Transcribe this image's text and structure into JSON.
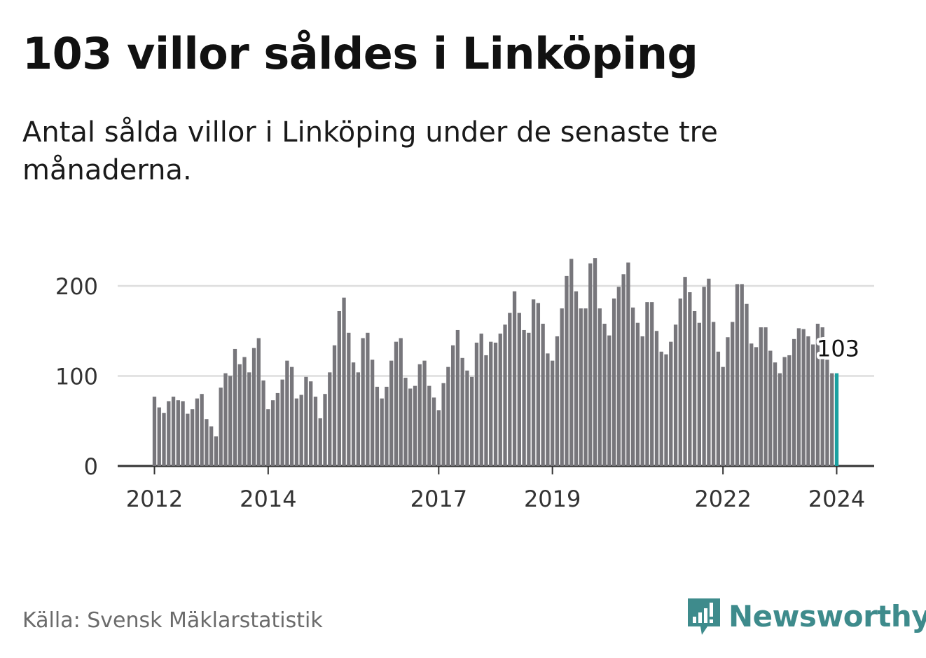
{
  "title": "103 villor såldes i Linköping",
  "subtitle": "Antal sålda villor i Linköping under de senaste tre månaderna.",
  "source": "Källa: Svensk Mäklarstatistik",
  "brand": "Newsworthy",
  "colors": {
    "bar": "#77767b",
    "highlight": "#1aa0a0",
    "grid": "#dddddd",
    "axis": "#333333",
    "brand": "#3e8b8c"
  },
  "chart_data": {
    "type": "bar",
    "title": "103 villor såldes i Linköping",
    "xlabel": "",
    "ylabel": "",
    "ylim": [
      0,
      240
    ],
    "yticks": [
      0,
      100,
      200
    ],
    "ytick_labels": [
      "0",
      "100",
      "200"
    ],
    "xticks": [
      {
        "label": "2012",
        "index": 0
      },
      {
        "label": "2014",
        "index": 24
      },
      {
        "label": "2017",
        "index": 60
      },
      {
        "label": "2019",
        "index": 84
      },
      {
        "label": "2022",
        "index": 120
      },
      {
        "label": "2024",
        "index": 144
      }
    ],
    "start": "2012-01",
    "highlight_index": 144,
    "highlight_label": "103",
    "values": [
      77,
      65,
      59,
      72,
      77,
      73,
      72,
      58,
      63,
      75,
      80,
      52,
      44,
      33,
      87,
      103,
      100,
      130,
      113,
      121,
      104,
      131,
      142,
      95,
      63,
      73,
      81,
      96,
      117,
      110,
      75,
      79,
      99,
      94,
      77,
      53,
      80,
      104,
      134,
      172,
      187,
      148,
      115,
      104,
      142,
      148,
      118,
      88,
      75,
      88,
      117,
      138,
      142,
      98,
      86,
      89,
      113,
      117,
      89,
      76,
      62,
      92,
      110,
      134,
      151,
      120,
      106,
      99,
      137,
      147,
      123,
      138,
      137,
      147,
      157,
      170,
      194,
      170,
      151,
      148,
      185,
      181,
      158,
      125,
      117,
      144,
      175,
      211,
      230,
      194,
      175,
      175,
      225,
      231,
      175,
      158,
      145,
      186,
      199,
      213,
      226,
      176,
      159,
      144,
      182,
      182,
      150,
      127,
      124,
      138,
      157,
      186,
      210,
      193,
      172,
      159,
      199,
      208,
      160,
      127,
      110,
      143,
      160,
      202,
      202,
      180,
      136,
      132,
      154,
      154,
      128,
      115,
      103,
      121,
      123,
      141,
      153,
      152,
      144,
      135,
      158,
      154,
      118,
      103,
      103
    ]
  }
}
